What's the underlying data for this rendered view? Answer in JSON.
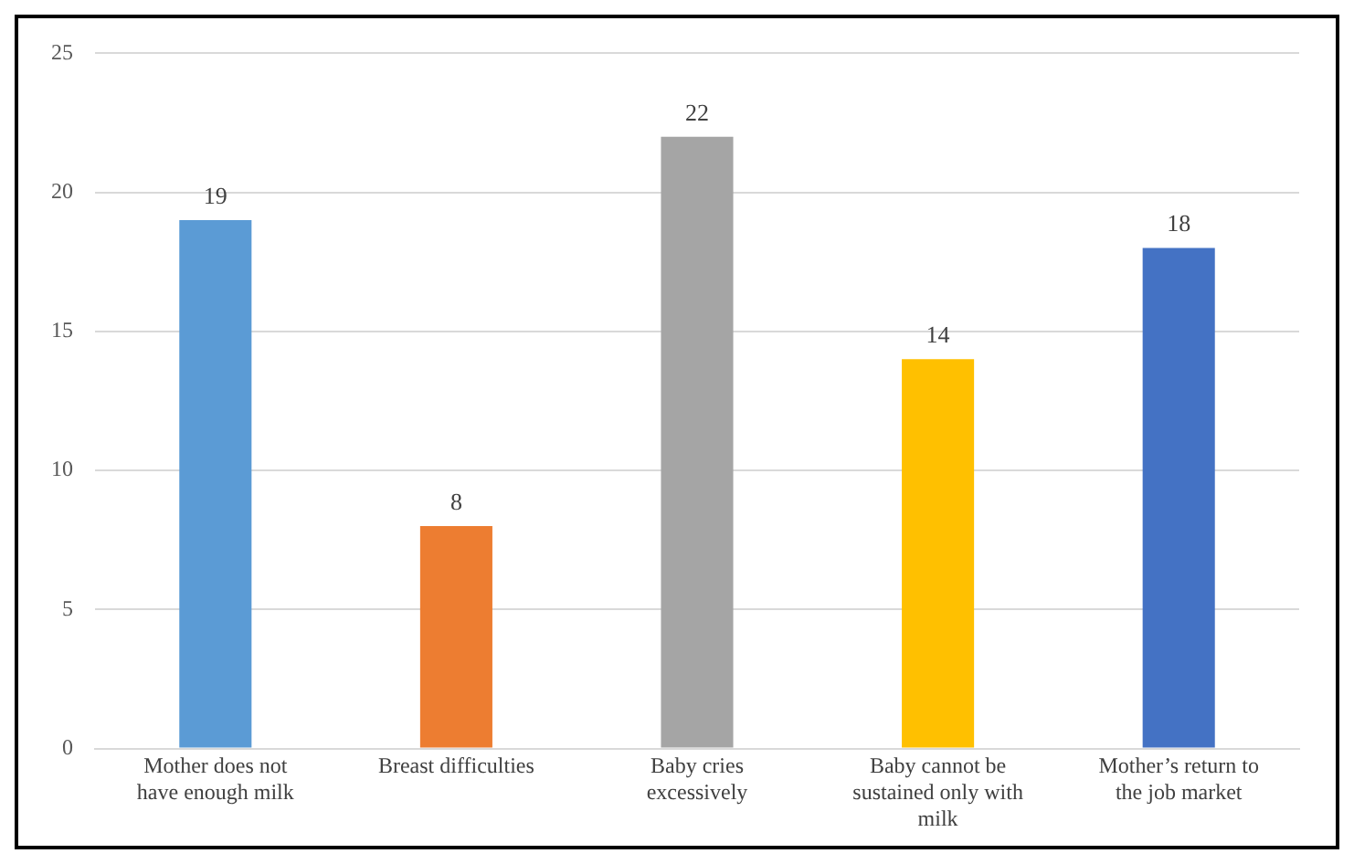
{
  "chart_data": {
    "type": "bar",
    "categories": [
      "Mother does not have enough milk",
      "Breast difficulties",
      "Baby cries excessively",
      "Baby cannot be sustained only with milk",
      "Mother’s return to the job market"
    ],
    "values": [
      19,
      8,
      22,
      14,
      18
    ],
    "colors": [
      "#5b9bd5",
      "#ed7d31",
      "#a5a5a5",
      "#ffc000",
      "#4472c4"
    ],
    "ylim": [
      0,
      25
    ],
    "yticks": [
      0,
      5,
      10,
      15,
      20,
      25
    ],
    "grid": "y",
    "data_labels": true
  }
}
